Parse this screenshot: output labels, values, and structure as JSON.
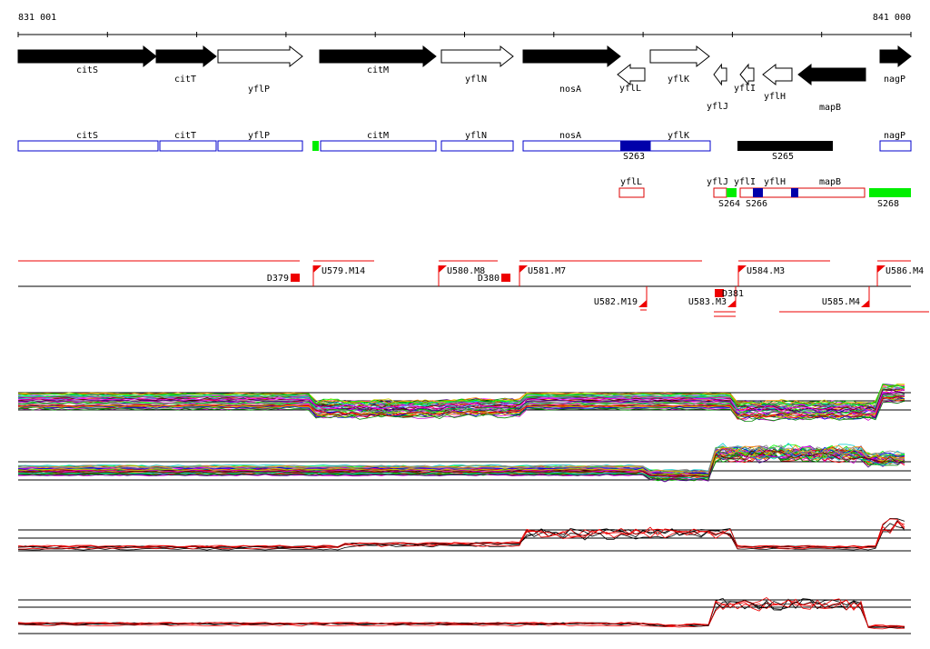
{
  "ruler": {
    "start": "831 001",
    "end": "841 000"
  },
  "genes": [
    "citS",
    "citT",
    "yflP",
    "citM",
    "yflN",
    "nosA",
    "yflL",
    "yflK",
    "yflJ",
    "yflI",
    "yflH",
    "mapB",
    "nagP"
  ],
  "units_upper": [
    "citS",
    "citT",
    "yflP",
    "citM",
    "yflN",
    "nosA",
    "yflK",
    "S263",
    "S265",
    "nagP"
  ],
  "units_lower": [
    "yflL",
    "yflJ",
    "yflI",
    "yflH",
    "mapB",
    "S264",
    "S266",
    "S268"
  ],
  "regulatory": [
    "D379",
    "U579.M14",
    "U580.M8",
    "D380",
    "U581.M7",
    "U582.M19",
    "U583.M3",
    "D381",
    "U584.M3",
    "U585.M4",
    "U586.M4"
  ]
}
